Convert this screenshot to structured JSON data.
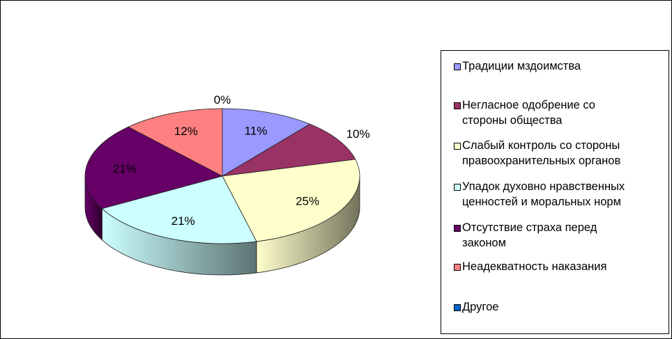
{
  "chart_data": {
    "type": "pie",
    "style": "3d",
    "title": "",
    "slices": [
      {
        "label": "Традиции мздоимства",
        "value": 11,
        "display": "11%",
        "color": "#9999ff"
      },
      {
        "label": "Негласное одобрение со стороны общества",
        "value": 10,
        "display": "10%",
        "color": "#993366"
      },
      {
        "label": "Слабый контроль со стороны правоохранительных органов",
        "value": 25,
        "display": "25%",
        "color": "#ffffcc"
      },
      {
        "label": "Упадок духовно нравственных ценностей и моральных норм",
        "value": 21,
        "display": "21%",
        "color": "#ccffff"
      },
      {
        "label": "Отсутствие страха перед законом",
        "value": 21,
        "display": "21%",
        "color": "#660066"
      },
      {
        "label": "Неадекватность наказания",
        "value": 12,
        "display": "12%",
        "color": "#ff8080"
      },
      {
        "label": "Другое",
        "value": 0,
        "display": "0%",
        "color": "#0066cc"
      }
    ],
    "legend": {
      "position": "right",
      "items": [
        [
          "Традиции мздоимства"
        ],
        [
          "Негласное одобрение со",
          "стороны общества"
        ],
        [
          "Слабый контроль со стороны",
          "правоохранительных органов"
        ],
        [
          "Упадок духовно нравственных",
          "ценностей и моральных норм"
        ],
        [
          "Отсутствие страха перед",
          "законом"
        ],
        [
          "Неадекватность наказания"
        ],
        [
          "Другое"
        ]
      ]
    }
  }
}
